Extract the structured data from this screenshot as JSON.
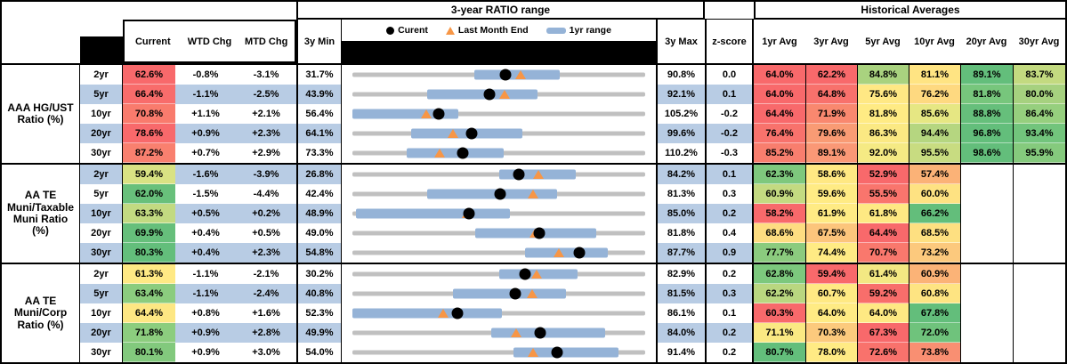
{
  "colors": {
    "row_band_blue": "#b8cce4",
    "range_bar_blue": "#95b3d7",
    "track_gray": "#c0c0c0",
    "triangle_orange": "#f79646",
    "heat_red": "#f8696b",
    "heat_yellow": "#ffeb84",
    "heat_green": "#63be7b"
  },
  "chart_data": {
    "type": "table",
    "title": "3-year RATIO range",
    "right_title": "Historical Averages",
    "columns": [
      "Current",
      "WTD Chg",
      "MTD Chg",
      "3y Min",
      "3y Max",
      "z-score",
      "1yr Avg",
      "3yr Avg",
      "5yr Avg",
      "10yr Avg",
      "20yr Avg",
      "30yr Avg"
    ],
    "range_chart": {
      "legend": [
        "Curent",
        "Last Month End",
        "1yr range"
      ],
      "scale_note": "each row bullet chart spans that row's 3y Min to 3y Max; values in percent"
    },
    "groups": [
      {
        "label": "AAA HG/UST Ratio (%)",
        "rows": [
          {
            "tenor": "2yr",
            "current": "62.6%",
            "current_bg": "#f8696b",
            "wtd": "-0.8%",
            "mtd": "-3.1%",
            "min": "31.7%",
            "max": "90.8%",
            "z": "0.0",
            "avgs": [
              {
                "v": "64.0%",
                "bg": "#f8696b"
              },
              {
                "v": "62.2%",
                "bg": "#f8696b"
              },
              {
                "v": "84.8%",
                "bg": "#a9d27f"
              },
              {
                "v": "81.1%",
                "bg": "#ffe483"
              },
              {
                "v": "89.1%",
                "bg": "#63be7b"
              },
              {
                "v": "83.7%",
                "bg": "#c3da80"
              }
            ],
            "chart": {
              "min": 31.7,
              "max": 90.8,
              "cur": 62.6,
              "lme": 65.7,
              "bar": [
                56.4,
                73.5
              ]
            }
          },
          {
            "tenor": "5yr",
            "current": "66.4%",
            "current_bg": "#f86c6b",
            "wtd": "-1.1%",
            "mtd": "-2.5%",
            "min": "43.9%",
            "max": "92.1%",
            "z": "0.1",
            "avgs": [
              {
                "v": "64.0%",
                "bg": "#f8696b"
              },
              {
                "v": "64.8%",
                "bg": "#f8716c"
              },
              {
                "v": "75.6%",
                "bg": "#ffe884"
              },
              {
                "v": "76.2%",
                "bg": "#fed980"
              },
              {
                "v": "81.8%",
                "bg": "#77c67c"
              },
              {
                "v": "80.0%",
                "bg": "#a6d17f"
              }
            ],
            "chart": {
              "min": 43.9,
              "max": 92.1,
              "cur": 66.4,
              "lme": 68.9,
              "bar": [
                56.2,
                74.4
              ]
            }
          },
          {
            "tenor": "10yr",
            "current": "70.8%",
            "current_bg": "#f97b6d",
            "wtd": "+1.1%",
            "mtd": "+2.1%",
            "min": "56.4%",
            "max": "105.2%",
            "z": "-0.2",
            "avgs": [
              {
                "v": "64.4%",
                "bg": "#f8696b"
              },
              {
                "v": "71.9%",
                "bg": "#f9886f"
              },
              {
                "v": "81.8%",
                "bg": "#ffeb84"
              },
              {
                "v": "85.6%",
                "bg": "#e6e783"
              },
              {
                "v": "88.8%",
                "bg": "#66bf7b"
              },
              {
                "v": "86.4%",
                "bg": "#96cf7e"
              }
            ],
            "chart": {
              "min": 56.4,
              "max": 105.2,
              "cur": 70.8,
              "lme": 68.7,
              "bar": [
                56.4,
                74.0
              ]
            }
          },
          {
            "tenor": "20yr",
            "current": "78.6%",
            "current_bg": "#f8696b",
            "wtd": "+0.9%",
            "mtd": "+2.3%",
            "min": "64.1%",
            "max": "99.6%",
            "z": "-0.2",
            "avgs": [
              {
                "v": "76.4%",
                "bg": "#f8726c"
              },
              {
                "v": "79.6%",
                "bg": "#f99b74"
              },
              {
                "v": "86.3%",
                "bg": "#fbe983"
              },
              {
                "v": "94.4%",
                "bg": "#b5d680"
              },
              {
                "v": "96.8%",
                "bg": "#63be7b"
              },
              {
                "v": "93.4%",
                "bg": "#72c47c"
              }
            ],
            "chart": {
              "min": 64.1,
              "max": 99.6,
              "cur": 78.6,
              "lme": 76.3,
              "bar": [
                71.2,
                84.7
              ]
            }
          },
          {
            "tenor": "30yr",
            "current": "87.2%",
            "current_bg": "#f9806f",
            "wtd": "+0.7%",
            "mtd": "+2.9%",
            "min": "73.3%",
            "max": "110.2%",
            "z": "-0.3",
            "avgs": [
              {
                "v": "85.2%",
                "bg": "#f87e6e"
              },
              {
                "v": "89.1%",
                "bg": "#fa9876"
              },
              {
                "v": "92.0%",
                "bg": "#f5ea84"
              },
              {
                "v": "95.5%",
                "bg": "#c8dc81"
              },
              {
                "v": "98.6%",
                "bg": "#63be7b"
              },
              {
                "v": "95.9%",
                "bg": "#85ca7d"
              }
            ],
            "chart": {
              "min": 73.3,
              "max": 110.2,
              "cur": 87.2,
              "lme": 84.3,
              "bar": [
                80.1,
                92.4
              ]
            }
          }
        ]
      },
      {
        "label": "AA TE Muni/Taxable Muni Ratio (%)",
        "rows": [
          {
            "tenor": "2yr",
            "current": "59.4%",
            "current_bg": "#d9e283",
            "wtd": "-1.6%",
            "mtd": "-3.9%",
            "min": "26.8%",
            "max": "84.2%",
            "z": "0.1",
            "avgs": [
              {
                "v": "62.3%",
                "bg": "#7ec87d"
              },
              {
                "v": "58.6%",
                "bg": "#ffe883"
              },
              {
                "v": "52.9%",
                "bg": "#f8696b"
              },
              {
                "v": "57.4%",
                "bg": "#fbb277"
              },
              {
                "v": "",
                "bg": ""
              },
              {
                "v": "",
                "bg": ""
              }
            ],
            "chart": {
              "min": 26.8,
              "max": 84.2,
              "cur": 59.4,
              "lme": 63.3,
              "bar": [
                55.5,
                70.6
              ]
            }
          },
          {
            "tenor": "5yr",
            "current": "62.0%",
            "current_bg": "#68c07b",
            "wtd": "-1.5%",
            "mtd": "-4.4%",
            "min": "42.4%",
            "max": "81.3%",
            "z": "0.3",
            "avgs": [
              {
                "v": "60.9%",
                "bg": "#c3da81"
              },
              {
                "v": "59.6%",
                "bg": "#ffeb84"
              },
              {
                "v": "55.5%",
                "bg": "#f9756d"
              },
              {
                "v": "60.0%",
                "bg": "#fee282"
              },
              {
                "v": "",
                "bg": ""
              },
              {
                "v": "",
                "bg": ""
              }
            ],
            "chart": {
              "min": 42.4,
              "max": 81.3,
              "cur": 62.0,
              "lme": 66.4,
              "bar": [
                52.3,
                69.6
              ]
            }
          },
          {
            "tenor": "10yr",
            "current": "63.3%",
            "current_bg": "#c2da81",
            "wtd": "+0.5%",
            "mtd": "+0.2%",
            "min": "48.9%",
            "max": "85.0%",
            "z": "0.2",
            "avgs": [
              {
                "v": "58.2%",
                "bg": "#f8696b"
              },
              {
                "v": "61.9%",
                "bg": "#ffeb84"
              },
              {
                "v": "61.8%",
                "bg": "#fee983"
              },
              {
                "v": "66.2%",
                "bg": "#63be7b"
              },
              {
                "v": "",
                "bg": ""
              },
              {
                "v": "",
                "bg": ""
              }
            ],
            "chart": {
              "min": 48.9,
              "max": 85.0,
              "cur": 63.3,
              "lme": 63.1,
              "bar": [
                49.3,
                68.3
              ]
            }
          },
          {
            "tenor": "20yr",
            "current": "69.9%",
            "current_bg": "#66bf7b",
            "wtd": "+0.4%",
            "mtd": "+0.5%",
            "min": "49.0%",
            "max": "81.8%",
            "z": "0.4",
            "avgs": [
              {
                "v": "68.6%",
                "bg": "#fedd81"
              },
              {
                "v": "67.5%",
                "bg": "#fcc57c"
              },
              {
                "v": "64.4%",
                "bg": "#f8696b"
              },
              {
                "v": "68.5%",
                "bg": "#fee081"
              },
              {
                "v": "",
                "bg": ""
              },
              {
                "v": "",
                "bg": ""
              }
            ],
            "chart": {
              "min": 49.0,
              "max": 81.8,
              "cur": 69.9,
              "lme": 69.4,
              "bar": [
                62.8,
                76.3
              ]
            }
          },
          {
            "tenor": "30yr",
            "current": "80.3%",
            "current_bg": "#63be7b",
            "wtd": "+0.4%",
            "mtd": "+2.3%",
            "min": "54.8%",
            "max": "87.7%",
            "z": "0.9",
            "avgs": [
              {
                "v": "77.7%",
                "bg": "#8bcb7e"
              },
              {
                "v": "74.4%",
                "bg": "#ffeb84"
              },
              {
                "v": "70.7%",
                "bg": "#f9786d"
              },
              {
                "v": "73.2%",
                "bg": "#fcc97d"
              },
              {
                "v": "",
                "bg": ""
              },
              {
                "v": "",
                "bg": ""
              }
            ],
            "chart": {
              "min": 54.8,
              "max": 87.7,
              "cur": 80.3,
              "lme": 78.0,
              "bar": [
                74.2,
                83.5
              ]
            }
          }
        ]
      },
      {
        "label": "AA TE Muni/Corp Ratio (%)",
        "rows": [
          {
            "tenor": "2yr",
            "current": "61.3%",
            "current_bg": "#ffe984",
            "wtd": "-1.1%",
            "mtd": "-2.1%",
            "min": "30.2%",
            "max": "82.9%",
            "z": "0.2",
            "avgs": [
              {
                "v": "62.8%",
                "bg": "#7cc87d"
              },
              {
                "v": "59.4%",
                "bg": "#f8696b"
              },
              {
                "v": "61.4%",
                "bg": "#f3e883"
              },
              {
                "v": "60.9%",
                "bg": "#fbb377"
              },
              {
                "v": "",
                "bg": ""
              },
              {
                "v": "",
                "bg": ""
              }
            ],
            "chart": {
              "min": 30.2,
              "max": 82.9,
              "cur": 61.3,
              "lme": 63.4,
              "bar": [
                56.6,
                70.8
              ]
            }
          },
          {
            "tenor": "5yr",
            "current": "63.4%",
            "current_bg": "#8bcc7e",
            "wtd": "-1.1%",
            "mtd": "-2.4%",
            "min": "40.8%",
            "max": "81.5%",
            "z": "0.3",
            "avgs": [
              {
                "v": "62.2%",
                "bg": "#b9d780"
              },
              {
                "v": "60.7%",
                "bg": "#ffe983"
              },
              {
                "v": "59.2%",
                "bg": "#f86e6b"
              },
              {
                "v": "60.8%",
                "bg": "#fee482"
              },
              {
                "v": "",
                "bg": ""
              },
              {
                "v": "",
                "bg": ""
              }
            ],
            "chart": {
              "min": 40.8,
              "max": 81.5,
              "cur": 63.4,
              "lme": 65.8,
              "bar": [
                54.8,
                70.5
              ]
            }
          },
          {
            "tenor": "10yr",
            "current": "64.4%",
            "current_bg": "#fde783",
            "wtd": "+0.8%",
            "mtd": "+1.6%",
            "min": "52.3%",
            "max": "86.1%",
            "z": "0.1",
            "avgs": [
              {
                "v": "60.3%",
                "bg": "#f8696b"
              },
              {
                "v": "64.0%",
                "bg": "#ffeb84"
              },
              {
                "v": "64.0%",
                "bg": "#fee983"
              },
              {
                "v": "67.8%",
                "bg": "#63be7b"
              },
              {
                "v": "",
                "bg": ""
              },
              {
                "v": "",
                "bg": ""
              }
            ],
            "chart": {
              "min": 52.3,
              "max": 86.1,
              "cur": 64.4,
              "lme": 62.8,
              "bar": [
                52.3,
                69.6
              ]
            }
          },
          {
            "tenor": "20yr",
            "current": "71.8%",
            "current_bg": "#8ccd7e",
            "wtd": "+0.9%",
            "mtd": "+2.8%",
            "min": "49.9%",
            "max": "84.0%",
            "z": "0.2",
            "avgs": [
              {
                "v": "71.1%",
                "bg": "#fae983"
              },
              {
                "v": "70.3%",
                "bg": "#fcca7d"
              },
              {
                "v": "67.3%",
                "bg": "#f8696b"
              },
              {
                "v": "72.0%",
                "bg": "#6fc37c"
              },
              {
                "v": "",
                "bg": ""
              },
              {
                "v": "",
                "bg": ""
              }
            ],
            "chart": {
              "min": 49.9,
              "max": 84.0,
              "cur": 71.8,
              "lme": 69.0,
              "bar": [
                66.1,
                79.3
              ]
            }
          },
          {
            "tenor": "30yr",
            "current": "80.1%",
            "current_bg": "#82c97d",
            "wtd": "+0.9%",
            "mtd": "+3.0%",
            "min": "54.0%",
            "max": "91.4%",
            "z": "0.2",
            "avgs": [
              {
                "v": "80.7%",
                "bg": "#63be7b"
              },
              {
                "v": "78.0%",
                "bg": "#ffeb84"
              },
              {
                "v": "72.6%",
                "bg": "#f9726c"
              },
              {
                "v": "73.8%",
                "bg": "#f98f72"
              },
              {
                "v": "",
                "bg": ""
              },
              {
                "v": "",
                "bg": ""
              }
            ],
            "chart": {
              "min": 54.0,
              "max": 91.4,
              "cur": 80.1,
              "lme": 77.1,
              "bar": [
                74.6,
                88.0
              ]
            }
          }
        ]
      }
    ]
  }
}
